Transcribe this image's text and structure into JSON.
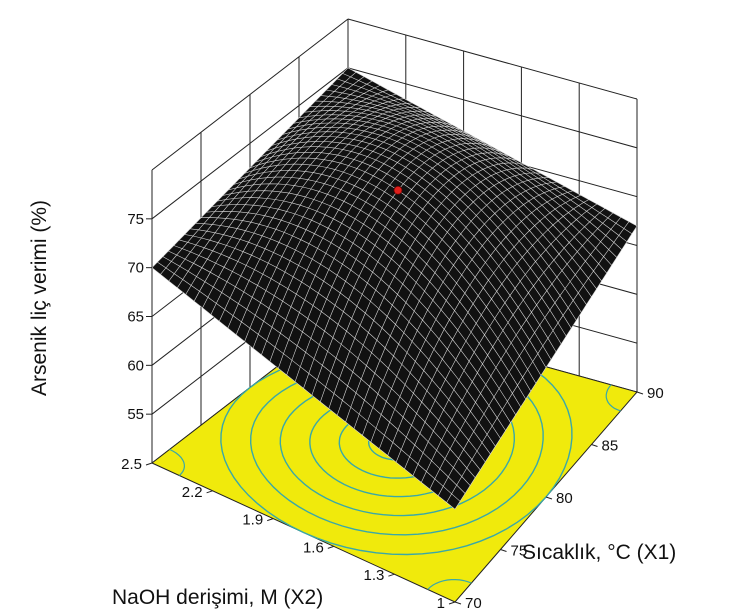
{
  "chart_data": {
    "type": "surface3d",
    "zlabel": "Arsenik liç verimi (%)",
    "xlabel": "Sıcaklık, °C (X1)",
    "ylabel": "NaOH derişimi, M (X2)",
    "x_ticks": [
      "70",
      "75",
      "80",
      "85",
      "90"
    ],
    "y_ticks": [
      "1",
      "1.3",
      "1.6",
      "1.9",
      "2.2",
      "2.5"
    ],
    "z_ticks": [
      "55",
      "60",
      "65",
      "70",
      "75"
    ],
    "xlim": [
      70,
      90
    ],
    "ylim": [
      1,
      2.5
    ],
    "zlim": [
      50,
      80
    ],
    "surface": {
      "center": {
        "x": 80,
        "y": 1.75,
        "z": 75.8
      },
      "corners": [
        {
          "x": 70,
          "y": 2.5,
          "z": 70
        },
        {
          "x": 90,
          "y": 2.5,
          "z": 75
        },
        {
          "x": 70,
          "y": 1.0,
          "z": 59.5
        },
        {
          "x": 90,
          "y": 1.0,
          "z": 67
        }
      ],
      "color": "#111111"
    },
    "optimum_point": {
      "x": 80,
      "y": 1.75,
      "z": 75.8,
      "color": "#e0201c"
    },
    "contour_plane": {
      "fill": "#f0ea0c",
      "line_color": "#3aa8a8",
      "levels": 6
    },
    "grid": true
  }
}
